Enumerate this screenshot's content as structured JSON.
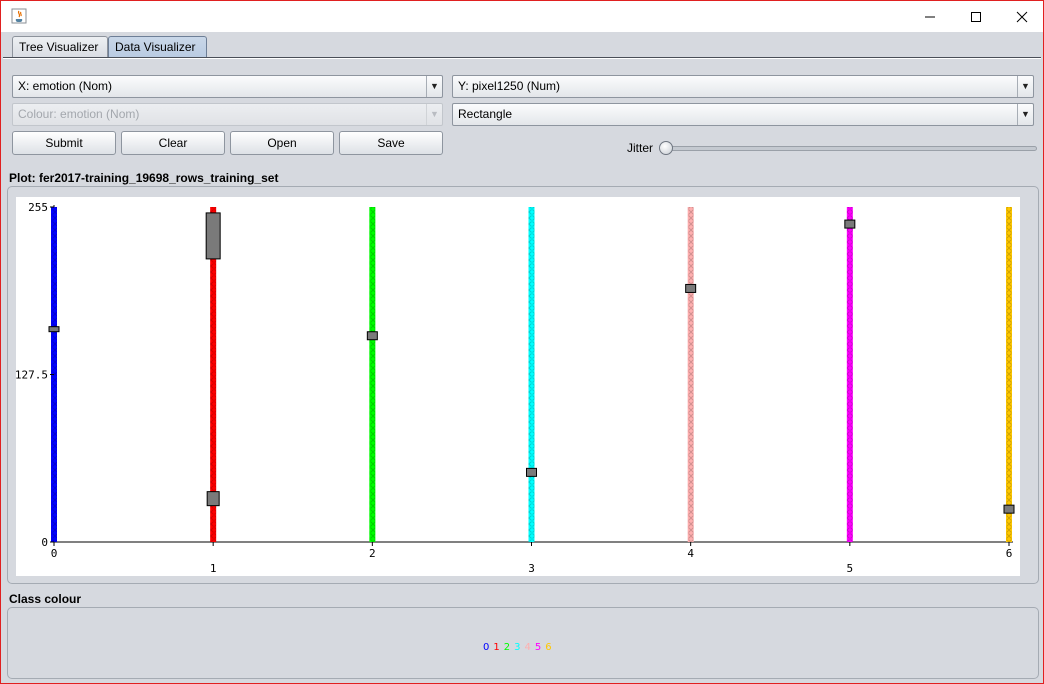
{
  "window": {
    "close_label": "✕"
  },
  "tabs": [
    {
      "label": "Tree Visualizer",
      "active": false
    },
    {
      "label": "Data Visualizer",
      "active": true
    }
  ],
  "controls": {
    "x_axis": "X: emotion (Nom)",
    "y_axis": "Y: pixel1250 (Num)",
    "colour": "Colour: emotion (Nom)",
    "shape": "Rectangle",
    "buttons": {
      "submit": "Submit",
      "clear": "Clear",
      "open": "Open",
      "save": "Save"
    },
    "jitter_label": "Jitter",
    "jitter_value": 0
  },
  "plot": {
    "title": "Plot: fer2017-training_19698_rows_training_set"
  },
  "legend": {
    "title": "Class colour",
    "classes": [
      {
        "label": "0",
        "color": "#0000ff"
      },
      {
        "label": "1",
        "color": "#ff0000"
      },
      {
        "label": "2",
        "color": "#00ff00"
      },
      {
        "label": "3",
        "color": "#00ffff"
      },
      {
        "label": "4",
        "color": "#ffafaf"
      },
      {
        "label": "5",
        "color": "#ff00ff"
      },
      {
        "label": "6",
        "color": "#ffc800"
      }
    ]
  },
  "chart_data": {
    "type": "scatter",
    "title": "",
    "xlabel": "",
    "ylabel": "",
    "x_categories": [
      "0",
      "1",
      "2",
      "3",
      "4",
      "5",
      "6"
    ],
    "y_ticks": [
      "0",
      "127.5",
      "255"
    ],
    "ylim": [
      0,
      255
    ],
    "grid": false,
    "series": [
      {
        "name": "0",
        "category": "0",
        "color": "#0000ff",
        "range": [
          0,
          255
        ],
        "markers": [
          162
        ]
      },
      {
        "name": "1",
        "category": "1",
        "color": "#ff0000",
        "range": [
          0,
          255
        ],
        "markers": [
          233,
          33
        ]
      },
      {
        "name": "2",
        "category": "2",
        "color": "#00ff00",
        "range": [
          0,
          255
        ],
        "markers": [
          157
        ]
      },
      {
        "name": "3",
        "category": "3",
        "color": "#00ffff",
        "range": [
          0,
          255
        ],
        "markers": [
          53
        ]
      },
      {
        "name": "4",
        "category": "4",
        "color": "#ffafaf",
        "range": [
          0,
          255
        ],
        "markers": [
          193
        ]
      },
      {
        "name": "5",
        "category": "5",
        "color": "#ff00ff",
        "range": [
          0,
          255
        ],
        "markers": [
          242
        ]
      },
      {
        "name": "6",
        "category": "6",
        "color": "#ffc800",
        "range": [
          0,
          255
        ],
        "markers": [
          25
        ]
      }
    ]
  }
}
